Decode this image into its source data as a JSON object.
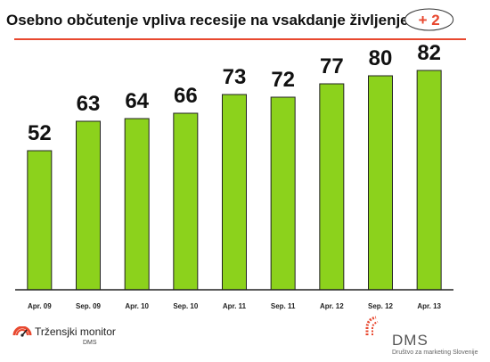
{
  "title": "Osebno občutenje vpliva recesije na vsakdanje življenje (%)",
  "colors": {
    "bar_fill": "#8cd21c",
    "bar_stroke": "#222222",
    "accent": "#e8482f",
    "axis": "#222222"
  },
  "chart_data": {
    "type": "bar",
    "title": "Osebno občutenje vpliva recesije na vsakdanje življenje (%)",
    "xlabel": "",
    "ylabel": "",
    "categories": [
      "Apr. 09",
      "Sep. 09",
      "Apr. 10",
      "Sep. 10",
      "Apr. 11",
      "Sep. 11",
      "Apr. 12",
      "Sep. 12",
      "Apr. 13"
    ],
    "values": [
      52,
      63,
      64,
      66,
      73,
      72,
      77,
      80,
      82
    ],
    "ylim": [
      0,
      100
    ],
    "grid": false,
    "legend": "none",
    "annotations": [
      {
        "text": "+ 2",
        "category": "Apr. 13"
      }
    ]
  },
  "footer": {
    "left_logo_name": "Tržensjki monitor",
    "left_logo_sub": "DMS",
    "right_logo_name": "DMS",
    "right_logo_sub": "Društvo za marketing Slovenije"
  }
}
